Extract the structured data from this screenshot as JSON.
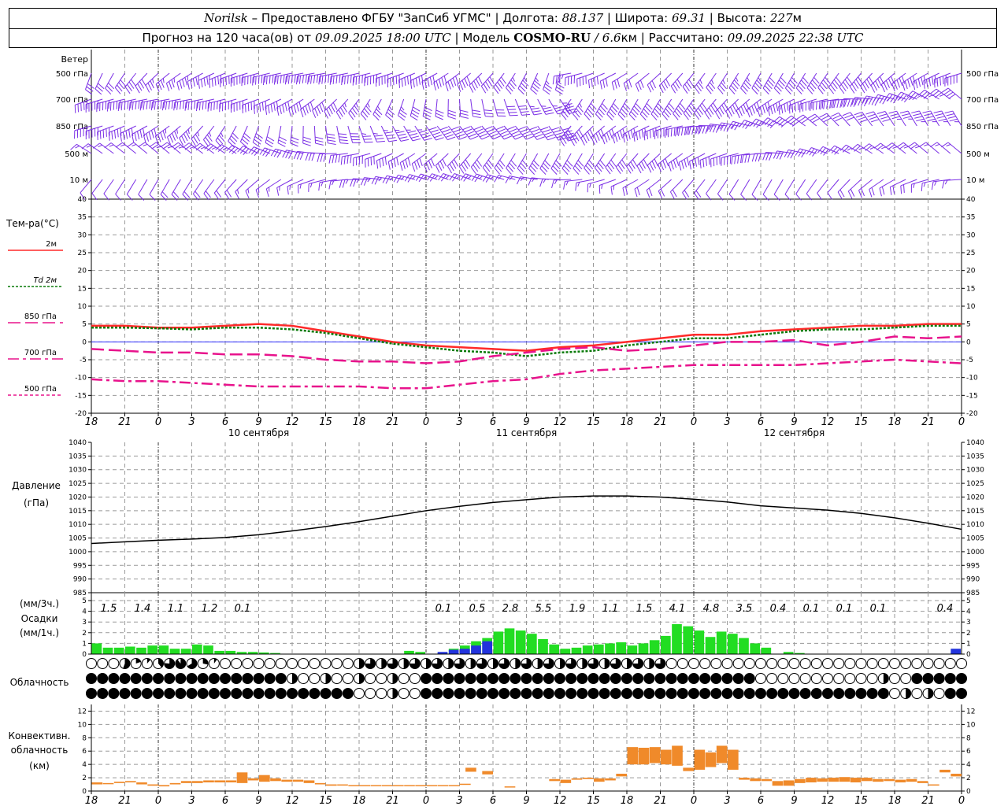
{
  "header": {
    "station": "Norilsk",
    "dash": "–",
    "provider": "Предоставлено ФГБУ \"ЗапСиб УГМС\"",
    "sep": "|",
    "lon_label": "Долгота:",
    "lon_value": "88.137",
    "lat_label": "Широта:",
    "lat_value": "69.31",
    "alt_label": "Высота:",
    "alt_value": "227",
    "alt_unit": "м",
    "forecast_prefix": "Прогноз на 120 часа(ов) от",
    "forecast_start": "09.09.2025 18:00 UTC",
    "model_label": "Модель",
    "model_name": "COSMO-RU",
    "model_slash": "/",
    "model_res": "6.6",
    "model_res_unit": "км",
    "calc_label": "Рассчитано:",
    "calc_time": "09.09.2025 22:38 UTC"
  },
  "chart_data": [
    {
      "type": "wind_barbs",
      "title": "Ветер",
      "levels": [
        "500 гПа",
        "700 гПа",
        "850 гПа",
        "500 м",
        "10 м"
      ],
      "barb_color": "#7b2fe6"
    },
    {
      "type": "line",
      "title": "Тем-ра(°C)",
      "ylim": [
        -20,
        40
      ],
      "yticks": [
        -20,
        -15,
        -10,
        -5,
        0,
        5,
        10,
        15,
        20,
        25,
        30,
        35,
        40
      ],
      "x_hours": [
        0,
        3,
        6,
        9,
        12,
        15,
        18,
        21,
        24,
        27,
        30,
        33,
        36,
        39,
        42,
        45,
        48,
        51,
        54,
        57,
        60,
        63,
        66,
        69,
        72,
        75,
        78
      ],
      "series": [
        {
          "name": "2м",
          "color": "#ff2a2a",
          "dash": "solid",
          "values": [
            4.5,
            4.5,
            4.0,
            4.0,
            4.5,
            5.0,
            4.5,
            3.0,
            1.5,
            0.0,
            -1.0,
            -1.5,
            -2.0,
            -2.5,
            -1.5,
            -1.0,
            0.0,
            1.0,
            2.0,
            2.0,
            3.0,
            3.5,
            4.0,
            4.5,
            4.5,
            5.0,
            5.0
          ]
        },
        {
          "name": "Td 2м",
          "color": "#0a7a0a",
          "dash": "dotted",
          "values": [
            4.0,
            4.0,
            3.8,
            3.5,
            4.0,
            4.0,
            3.5,
            2.5,
            1.0,
            -0.5,
            -1.5,
            -2.5,
            -3.0,
            -4.0,
            -3.0,
            -2.5,
            -1.0,
            0.0,
            1.0,
            1.0,
            2.0,
            3.0,
            3.5,
            3.5,
            4.0,
            4.5,
            4.5
          ]
        },
        {
          "name": "850 гПа",
          "color": "#e8138c",
          "dash": "longdash",
          "values": [
            -2.0,
            -2.5,
            -3.0,
            -3.0,
            -3.5,
            -3.5,
            -4.0,
            -5.0,
            -5.5,
            -5.5,
            -6.0,
            -5.5,
            -4.0,
            -3.0,
            -2.0,
            -1.5,
            -2.5,
            -2.0,
            -1.0,
            0.0,
            0.0,
            0.5,
            -1.0,
            0.0,
            1.5,
            1.0,
            1.5
          ]
        },
        {
          "name": "700 гПа",
          "color": "#e8138c",
          "dash": "dashdot",
          "values": [
            -10.5,
            -11.0,
            -11.0,
            -11.5,
            -12.0,
            -12.5,
            -12.5,
            -12.5,
            -12.5,
            -13.0,
            -13.0,
            -12.0,
            -11.0,
            -10.5,
            -9.0,
            -8.0,
            -7.5,
            -7.0,
            -6.5,
            -6.5,
            -6.5,
            -6.5,
            -6.0,
            -5.5,
            -5.0,
            -5.5,
            -6.0
          ]
        }
      ],
      "xaxis_day_labels": [
        "10 сентября",
        "11 сентября",
        "12 сентября"
      ],
      "xtick_labels": [
        "18",
        "21",
        "0",
        "3",
        "6",
        "9",
        "12",
        "15",
        "18",
        "21",
        "0",
        "3",
        "6",
        "9",
        "12",
        "15",
        "18",
        "21",
        "0",
        "3",
        "6",
        "9",
        "12",
        "15",
        "18",
        "21",
        "0"
      ],
      "legend_extra": "500 гПа"
    },
    {
      "type": "line",
      "title": "Давление",
      "unit": "(гПа)",
      "ylim": [
        985,
        1040
      ],
      "yticks": [
        985,
        990,
        995,
        1000,
        1005,
        1010,
        1015,
        1020,
        1025,
        1030,
        1035,
        1040
      ],
      "x_hours": [
        0,
        3,
        6,
        9,
        12,
        15,
        18,
        21,
        24,
        27,
        30,
        33,
        36,
        39,
        42,
        45,
        48,
        51,
        54,
        57,
        60,
        63,
        66,
        69,
        72,
        75,
        78
      ],
      "series": [
        {
          "name": "pressure",
          "color": "#000000",
          "values": [
            1003.0,
            1003.6,
            1004.2,
            1004.6,
            1005.2,
            1006.2,
            1007.6,
            1009.2,
            1011.0,
            1013.0,
            1015.0,
            1016.6,
            1018.0,
            1019.0,
            1020.0,
            1020.4,
            1020.4,
            1020.0,
            1019.2,
            1018.2,
            1016.8,
            1016.0,
            1015.2,
            1014.0,
            1012.4,
            1010.4,
            1008.2
          ]
        }
      ]
    },
    {
      "type": "bar",
      "title": "Осадки",
      "units": [
        "(мм/3ч.)",
        "(мм/1ч.)"
      ],
      "ylim": [
        0,
        5
      ],
      "yticks": [
        0,
        1,
        2,
        3,
        4,
        5
      ],
      "three_hour_totals": [
        "1.5",
        "1.4",
        "1.1",
        "1.2",
        "0.1",
        "0.1",
        "0.5",
        "2.8",
        "5.5",
        "1.9",
        "1.1",
        "1.5",
        "4.1",
        "4.8",
        "3.5",
        "0.4",
        "0.1",
        "0.1",
        "0.1",
        "0.4"
      ],
      "colors": {
        "rain": "#22dd22",
        "snow": "#2233dd"
      }
    },
    {
      "type": "cloud_symbols",
      "title": "Облачность",
      "rows": 3
    },
    {
      "type": "bar",
      "title": "Конвективн. облачность",
      "unit": "(км)",
      "ylim": [
        0,
        13
      ],
      "yticks": [
        0,
        2,
        4,
        6,
        8,
        10,
        12
      ],
      "color": "#f08a2a"
    }
  ]
}
